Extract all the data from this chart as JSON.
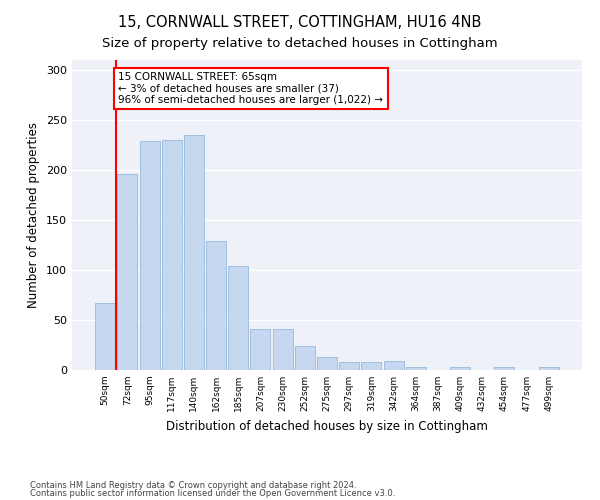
{
  "title": "15, CORNWALL STREET, COTTINGHAM, HU16 4NB",
  "subtitle": "Size of property relative to detached houses in Cottingham",
  "xlabel": "Distribution of detached houses by size in Cottingham",
  "ylabel": "Number of detached properties",
  "categories": [
    "50sqm",
    "72sqm",
    "95sqm",
    "117sqm",
    "140sqm",
    "162sqm",
    "185sqm",
    "207sqm",
    "230sqm",
    "252sqm",
    "275sqm",
    "297sqm",
    "319sqm",
    "342sqm",
    "364sqm",
    "387sqm",
    "409sqm",
    "432sqm",
    "454sqm",
    "477sqm",
    "499sqm"
  ],
  "values": [
    67,
    196,
    229,
    230,
    235,
    129,
    104,
    41,
    41,
    24,
    13,
    8,
    8,
    9,
    3,
    0,
    3,
    0,
    3,
    0,
    3
  ],
  "bar_color": "#c5d8f0",
  "bar_edgecolor": "#8ab0d8",
  "annotation_text": "15 CORNWALL STREET: 65sqm\n← 3% of detached houses are smaller (37)\n96% of semi-detached houses are larger (1,022) →",
  "annotation_box_color": "white",
  "annotation_box_edgecolor": "red",
  "vline_x": 0.5,
  "vline_color": "red",
  "ylim": [
    0,
    310
  ],
  "yticks": [
    0,
    50,
    100,
    150,
    200,
    250,
    300
  ],
  "footnote1": "Contains HM Land Registry data © Crown copyright and database right 2024.",
  "footnote2": "Contains public sector information licensed under the Open Government Licence v3.0.",
  "plot_background": "#eef2f8",
  "title_fontsize": 10.5,
  "subtitle_fontsize": 9.5,
  "xlabel_fontsize": 8.5,
  "ylabel_fontsize": 8.5
}
